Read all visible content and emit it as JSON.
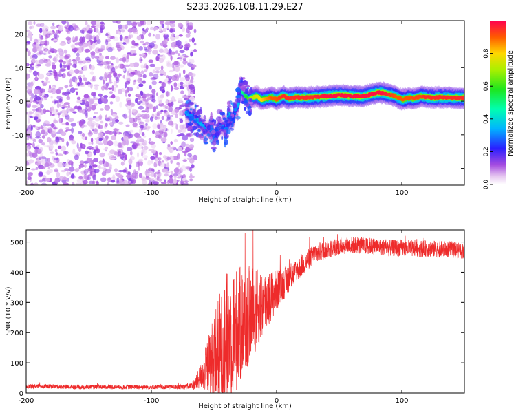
{
  "title": "S233.2026.108.11.29.E27",
  "chart_data": [
    {
      "type": "heatmap",
      "name": "spectrogram",
      "xlabel": "Height of straight line (km)",
      "ylabel": "Frequency (Hz)",
      "xlim": [
        -200,
        150
      ],
      "ylim": [
        -25,
        24
      ],
      "xticks": [
        -200,
        -100,
        0,
        100
      ],
      "yticks": [
        -20,
        -10,
        0,
        10,
        20
      ],
      "colorbar": {
        "label": "Normalized spectral amplitude",
        "range": [
          0.0,
          1.0
        ],
        "ticks": [
          0.0,
          0.2,
          0.4,
          0.6,
          0.8
        ],
        "tick_labels": [
          "0.0",
          "0.2",
          "0.4",
          "0.6",
          "0.8"
        ]
      },
      "noise_region": {
        "x_range": [
          -200,
          -65
        ],
        "amplitude": 0.1
      },
      "ridge": {
        "x": [
          -72,
          -68,
          -64,
          -60,
          -56,
          -52,
          -50,
          -46,
          -44,
          -40,
          -38,
          -35,
          -33,
          -31,
          -29,
          -26,
          -23,
          -20,
          -16,
          -12,
          -8,
          -4,
          0,
          5,
          10,
          15,
          20,
          30,
          40,
          50,
          60,
          70,
          80,
          85,
          90,
          95,
          100,
          105,
          110,
          115,
          120,
          125,
          130,
          140,
          150
        ],
        "frequency": [
          -3.5,
          -4.5,
          -5.5,
          -7.0,
          -8.5,
          -8.0,
          -10.5,
          -7.5,
          -7.5,
          -9.0,
          -3.5,
          -6.5,
          -2.5,
          -1.5,
          3.5,
          2.5,
          0.5,
          1.0,
          1.5,
          0.5,
          0.8,
          1.2,
          0.5,
          1.5,
          0.8,
          1.2,
          1.0,
          1.2,
          1.5,
          1.8,
          1.5,
          1.5,
          2.5,
          2.5,
          2.0,
          1.5,
          0.5,
          1.0,
          0.8,
          1.5,
          1.2,
          1.0,
          1.2,
          1.0,
          1.0
        ],
        "amplitude": [
          0.35,
          0.3,
          0.4,
          0.35,
          0.3,
          0.35,
          0.25,
          0.3,
          0.35,
          0.3,
          0.4,
          0.25,
          0.3,
          0.35,
          0.4,
          0.5,
          0.6,
          0.7,
          0.75,
          0.8,
          0.85,
          0.9,
          0.9,
          0.95,
          0.95,
          0.95,
          0.95,
          0.95,
          0.98,
          0.98,
          0.98,
          0.98,
          0.98,
          0.98,
          0.95,
          0.9,
          0.9,
          0.9,
          0.92,
          0.92,
          0.95,
          0.95,
          0.95,
          0.95,
          0.95
        ]
      }
    },
    {
      "type": "line",
      "name": "snr",
      "xlabel": "Height of straight line (km)",
      "ylabel": "SNR (10 * v/v)",
      "xlim": [
        -200,
        150
      ],
      "ylim": [
        0,
        540
      ],
      "xticks": [
        -200,
        -100,
        0,
        100
      ],
      "yticks": [
        0,
        100,
        200,
        300,
        400,
        500
      ],
      "color": "#ee2b2b",
      "series": [
        {
          "name": "SNR",
          "x": [
            -200,
            -180,
            -160,
            -140,
            -120,
            -100,
            -80,
            -70,
            -65,
            -60,
            -55,
            -50,
            -45,
            -40,
            -35,
            -30,
            -25,
            -20,
            -15,
            -10,
            -5,
            0,
            5,
            10,
            15,
            20,
            25,
            30,
            40,
            50,
            60,
            70,
            80,
            90,
            100,
            110,
            120,
            130,
            140,
            150
          ],
          "y": [
            22,
            22,
            20,
            20,
            20,
            20,
            20,
            22,
            30,
            60,
            90,
            120,
            140,
            180,
            200,
            220,
            240,
            260,
            280,
            300,
            320,
            340,
            360,
            380,
            400,
            420,
            440,
            460,
            475,
            485,
            490,
            488,
            485,
            480,
            480,
            478,
            478,
            476,
            475,
            472
          ],
          "noise": [
            7,
            7,
            7,
            7,
            7,
            7,
            7,
            10,
            20,
            45,
            90,
            150,
            200,
            220,
            220,
            200,
            180,
            160,
            130,
            110,
            90,
            70,
            55,
            45,
            40,
            35,
            35,
            35,
            30,
            28,
            28,
            28,
            28,
            28,
            28,
            28,
            28,
            28,
            28,
            28
          ]
        }
      ]
    }
  ]
}
